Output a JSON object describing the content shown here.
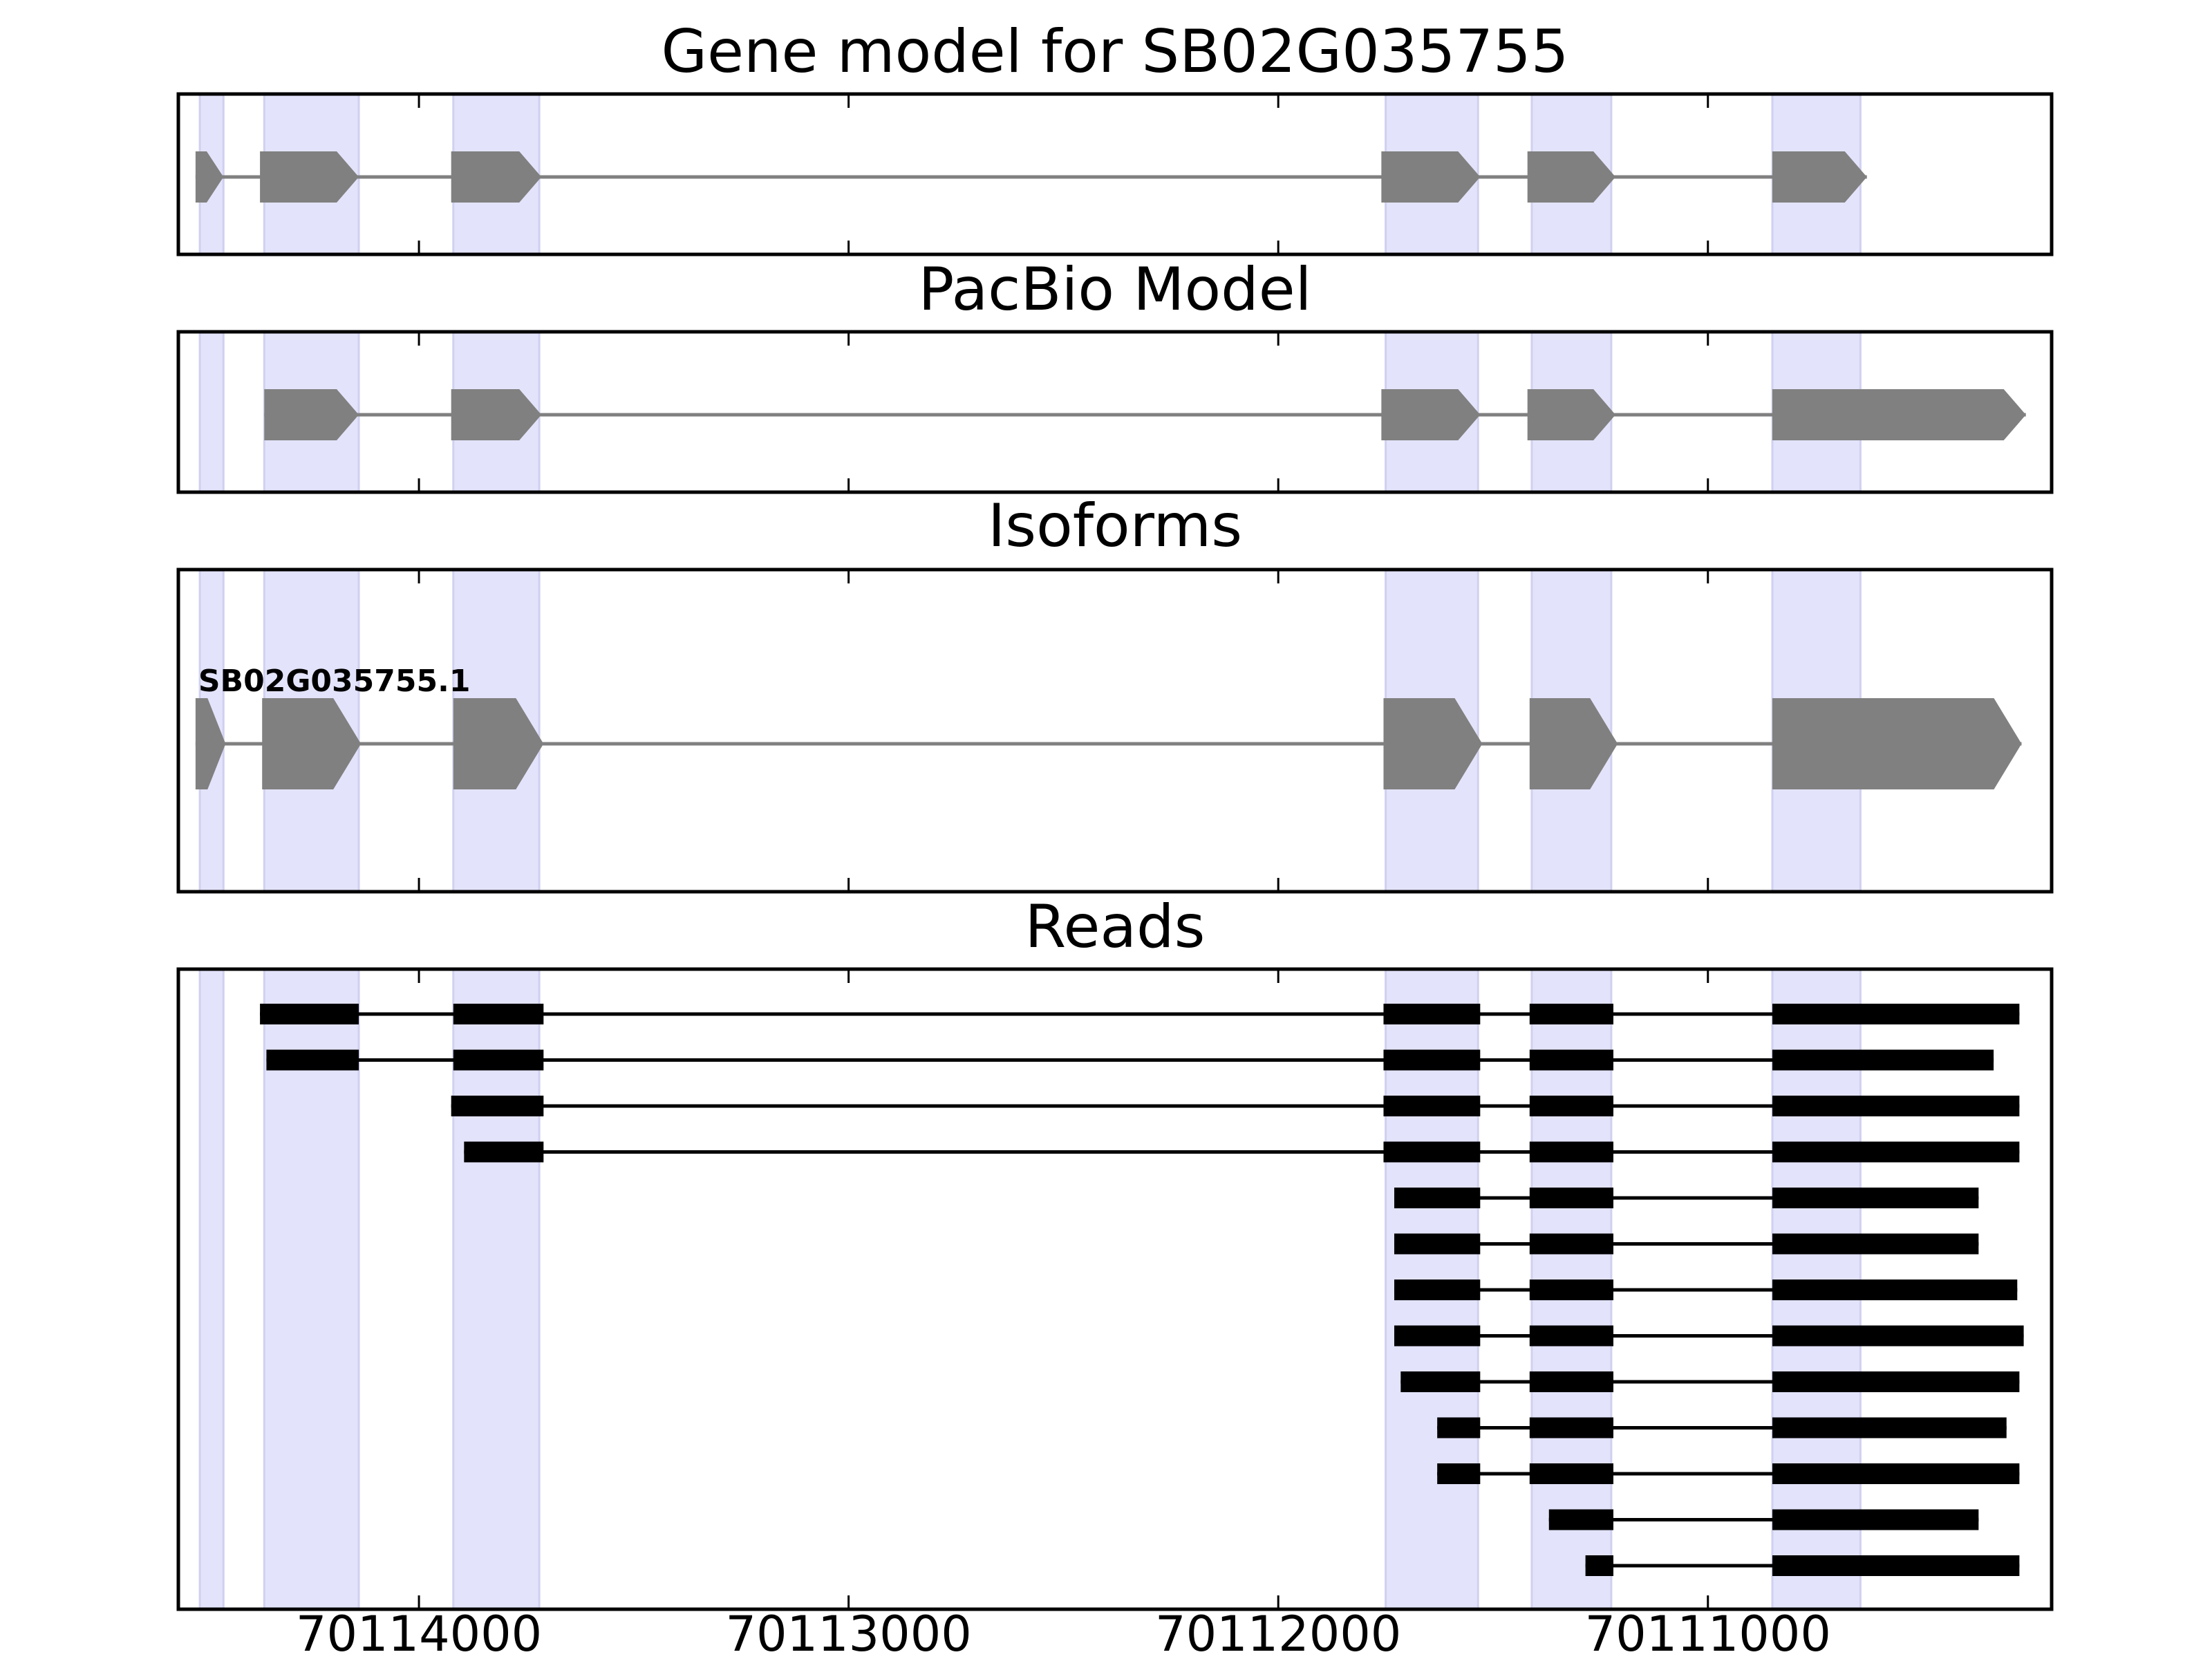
{
  "chart_data": {
    "type": "gene-structure",
    "x_axis": {
      "reversed": true,
      "ticks": [
        70114000,
        70113000,
        70112000,
        70111000
      ],
      "tick_labels": [
        "70114000",
        "70113000",
        "70112000",
        "70111000"
      ]
    },
    "colors": {
      "exon_highlight": "#e3e3fb",
      "model_exon": "#808080",
      "intron_line": "#808080",
      "read": "#000000"
    },
    "highlight_exons": [
      [
        70114510,
        70114455
      ],
      [
        70114360,
        70114140
      ],
      [
        70113920,
        70113720
      ],
      [
        70111750,
        70111535
      ],
      [
        70111410,
        70111225
      ],
      [
        70110850,
        70110645
      ]
    ],
    "panels": [
      {
        "title": "Gene model for SB02G035755",
        "kind": "model",
        "tracks": [
          {
            "exons": [
              [
                70114520,
                70114455
              ],
              [
                70114370,
                70114140
              ],
              [
                70113925,
                70113715
              ],
              [
                70111760,
                70111530
              ],
              [
                70111420,
                70111215
              ],
              [
                70110850,
                70110630
              ]
            ]
          }
        ]
      },
      {
        "title": "PacBio Model",
        "kind": "model",
        "tracks": [
          {
            "exons": [
              [
                70114360,
                70114140
              ],
              [
                70113925,
                70113715
              ],
              [
                70111760,
                70111530
              ],
              [
                70111420,
                70111215
              ],
              [
                70110850,
                70110260
              ]
            ]
          }
        ]
      },
      {
        "title": "Isoforms",
        "kind": "isoform",
        "tracks": [
          {
            "name": "SB02G035755.1",
            "exons": [
              [
                70114520,
                70114450
              ],
              [
                70114365,
                70114135
              ],
              [
                70113920,
                70113710
              ],
              [
                70111755,
                70111525
              ],
              [
                70111415,
                70111210
              ],
              [
                70110850,
                70110270
              ]
            ]
          }
        ]
      },
      {
        "title": "Reads",
        "kind": "reads",
        "tracks": [
          {
            "exons": [
              [
                70114370,
                70114140
              ],
              [
                70113920,
                70113710
              ],
              [
                70111755,
                70111530
              ],
              [
                70111415,
                70111220
              ],
              [
                70110850,
                70110275
              ]
            ]
          },
          {
            "exons": [
              [
                70114355,
                70114140
              ],
              [
                70113920,
                70113710
              ],
              [
                70111755,
                70111530
              ],
              [
                70111415,
                70111220
              ],
              [
                70110850,
                70110335
              ]
            ]
          },
          {
            "exons": [
              [
                70113925,
                70113710
              ],
              [
                70111755,
                70111530
              ],
              [
                70111415,
                70111220
              ],
              [
                70110850,
                70110275
              ]
            ]
          },
          {
            "exons": [
              [
                70113895,
                70113710
              ],
              [
                70111755,
                70111530
              ],
              [
                70111415,
                70111220
              ],
              [
                70110850,
                70110275
              ]
            ]
          },
          {
            "exons": [
              [
                70111730,
                70111530
              ],
              [
                70111415,
                70111220
              ],
              [
                70110850,
                70110370
              ]
            ]
          },
          {
            "exons": [
              [
                70111730,
                70111530
              ],
              [
                70111415,
                70111220
              ],
              [
                70110850,
                70110370
              ]
            ]
          },
          {
            "exons": [
              [
                70111730,
                70111530
              ],
              [
                70111415,
                70111220
              ],
              [
                70110850,
                70110280
              ]
            ]
          },
          {
            "exons": [
              [
                70111730,
                70111530
              ],
              [
                70111415,
                70111220
              ],
              [
                70110850,
                70110265
              ]
            ]
          },
          {
            "exons": [
              [
                70111715,
                70111530
              ],
              [
                70111415,
                70111220
              ],
              [
                70110850,
                70110275
              ]
            ]
          },
          {
            "exons": [
              [
                70111630,
                70111530
              ],
              [
                70111415,
                70111220
              ],
              [
                70110850,
                70110305
              ]
            ]
          },
          {
            "exons": [
              [
                70111630,
                70111530
              ],
              [
                70111415,
                70111220
              ],
              [
                70110850,
                70110275
              ]
            ]
          },
          {
            "exons": [
              [
                70111370,
                70111220
              ],
              [
                70110850,
                70110370
              ]
            ]
          },
          {
            "exons": [
              [
                70111285,
                70111220
              ],
              [
                70110850,
                70110275
              ]
            ]
          }
        ]
      }
    ]
  }
}
